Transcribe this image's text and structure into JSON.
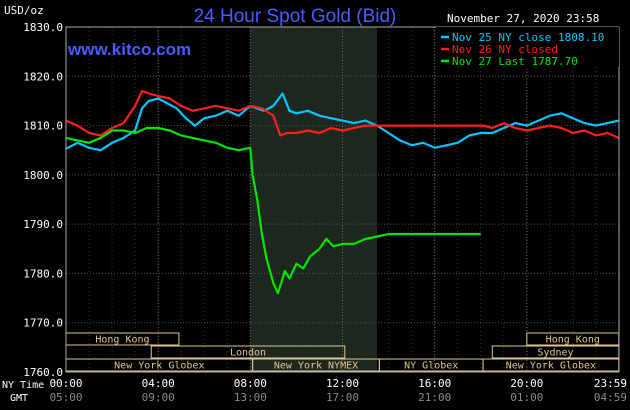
{
  "chart_data": {
    "type": "line",
    "title": "24 Hour Spot Gold (Bid)",
    "source": "www.kitco.com",
    "date_time": "November 27, 2020 23:58",
    "ylabel": "USD/oz",
    "ylim": [
      1760,
      1830
    ],
    "xlim": [
      0,
      24
    ],
    "grid": true,
    "legend_position": "top-right",
    "y_ticks": [
      "1830.0",
      "1820.0",
      "1810.0",
      "1800.0",
      "1790.0",
      "1780.0",
      "1770.0",
      "1760.0"
    ],
    "x_ticks_ny": [
      "00:00",
      "04:00",
      "08:00",
      "12:00",
      "16:00",
      "20:00",
      "23:59"
    ],
    "x_ticks_gmt": [
      "05:00",
      "09:00",
      "13:00",
      "17:00",
      "21:00",
      "01:00",
      "04:59"
    ],
    "x_axis_label_ny": "NY Time",
    "x_axis_label_gmt": "GMT",
    "highlight_range": [
      8,
      13.5
    ],
    "sessions": [
      {
        "label": "Hong Kong",
        "row": 1,
        "start": 0,
        "end": 4.9
      },
      {
        "label": "Hong Kong",
        "row": 1,
        "start": 20,
        "end": 23.99
      },
      {
        "label": "London",
        "row": 2,
        "start": 3.7,
        "end": 12.1
      },
      {
        "label": "Sydney",
        "row": 2,
        "start": 18.5,
        "end": 23.99
      },
      {
        "label": "New York Globex",
        "row": 3,
        "start": 0,
        "end": 8.1
      },
      {
        "label": "New York NYMEX",
        "row": 3,
        "start": 8.1,
        "end": 13.6
      },
      {
        "label": "NY Globex",
        "row": 3,
        "start": 13.6,
        "end": 18.1
      },
      {
        "label": "New York Globex",
        "row": 3,
        "start": 18.1,
        "end": 23.99
      }
    ],
    "series": [
      {
        "name": "Nov 25 NY close 1808.10",
        "color": "#00c8ff",
        "x": [
          0,
          0.5,
          1,
          1.5,
          2,
          2.5,
          3,
          3.3,
          3.6,
          4,
          4.4,
          4.8,
          5.2,
          5.6,
          6,
          6.5,
          7,
          7.5,
          8,
          8.3,
          8.6,
          9,
          9.4,
          9.7,
          10,
          10.5,
          11,
          11.5,
          12,
          12.5,
          13,
          13.5,
          14,
          14.5,
          15,
          15.5,
          16,
          16.5,
          17,
          17.5,
          18,
          18.5,
          19,
          19.5,
          20,
          20.5,
          21,
          21.5,
          22,
          22.5,
          23,
          23.5,
          23.99
        ],
        "y": [
          1805.3,
          1806.5,
          1805.5,
          1805.0,
          1806.5,
          1807.5,
          1809.0,
          1813.5,
          1815.0,
          1815.5,
          1814.5,
          1813.5,
          1811.5,
          1810.0,
          1811.5,
          1812.0,
          1813.0,
          1812.0,
          1814.0,
          1813.5,
          1813.0,
          1814.0,
          1816.5,
          1813.0,
          1812.5,
          1813.0,
          1812.0,
          1811.5,
          1811.0,
          1810.5,
          1811.0,
          1810.0,
          1808.5,
          1807.0,
          1806.0,
          1806.5,
          1805.5,
          1806.0,
          1806.5,
          1808.0,
          1808.5,
          1808.5,
          1809.5,
          1810.5,
          1810.0,
          1811.0,
          1812.0,
          1812.5,
          1811.5,
          1810.5,
          1810.0,
          1810.5,
          1811.0
        ]
      },
      {
        "name": "Nov 26 NY closed",
        "color": "#ff1e1e",
        "x": [
          0,
          0.5,
          1,
          1.5,
          2,
          2.5,
          3,
          3.3,
          3.6,
          4,
          4.5,
          5,
          5.5,
          6,
          6.5,
          7,
          7.5,
          8,
          8.5,
          9,
          9.3,
          9.6,
          10,
          10.5,
          11,
          11.5,
          12,
          12.5,
          13,
          13.5,
          18.1,
          18.5,
          19,
          19.5,
          20,
          20.5,
          21,
          21.5,
          22,
          22.5,
          23,
          23.5,
          23.99
        ],
        "y": [
          1811.0,
          1810.0,
          1808.5,
          1808.0,
          1809.5,
          1810.5,
          1814.0,
          1817.0,
          1816.5,
          1816.0,
          1815.5,
          1814.0,
          1813.0,
          1813.5,
          1814.0,
          1813.5,
          1813.0,
          1814.0,
          1813.5,
          1812.0,
          1808.0,
          1808.5,
          1808.5,
          1809.0,
          1808.5,
          1809.5,
          1809.0,
          1809.5,
          1810.0,
          1810.0,
          1810.0,
          1809.5,
          1810.5,
          1809.5,
          1809.0,
          1809.5,
          1810.0,
          1809.5,
          1808.5,
          1809.0,
          1808.0,
          1808.5,
          1807.5
        ]
      },
      {
        "name": "Nov 27 Last 1787.70",
        "color": "#00e600",
        "x": [
          0,
          0.5,
          1,
          1.5,
          2,
          2.5,
          3,
          3.5,
          4,
          4.5,
          5,
          5.5,
          6,
          6.5,
          7,
          7.5,
          8,
          8.1,
          8.3,
          8.5,
          8.7,
          9,
          9.2,
          9.5,
          9.7,
          10,
          10.3,
          10.6,
          11,
          11.3,
          11.6,
          12,
          12.5,
          13,
          13.5,
          14,
          14.5,
          15,
          16,
          17,
          18
        ],
        "y": [
          1807.5,
          1807.0,
          1806.5,
          1807.5,
          1809.0,
          1809.0,
          1808.5,
          1809.5,
          1809.5,
          1809.0,
          1808.0,
          1807.5,
          1807.0,
          1806.5,
          1805.5,
          1805.0,
          1805.5,
          1800.0,
          1795.0,
          1788.0,
          1783.0,
          1778.0,
          1776.0,
          1780.5,
          1779.0,
          1782.0,
          1781.0,
          1783.5,
          1785.0,
          1787.0,
          1785.5,
          1786.0,
          1786.0,
          1787.0,
          1787.5,
          1788.0,
          1788.0,
          1788.0,
          1788.0,
          1788.0,
          1788.0
        ]
      }
    ]
  }
}
